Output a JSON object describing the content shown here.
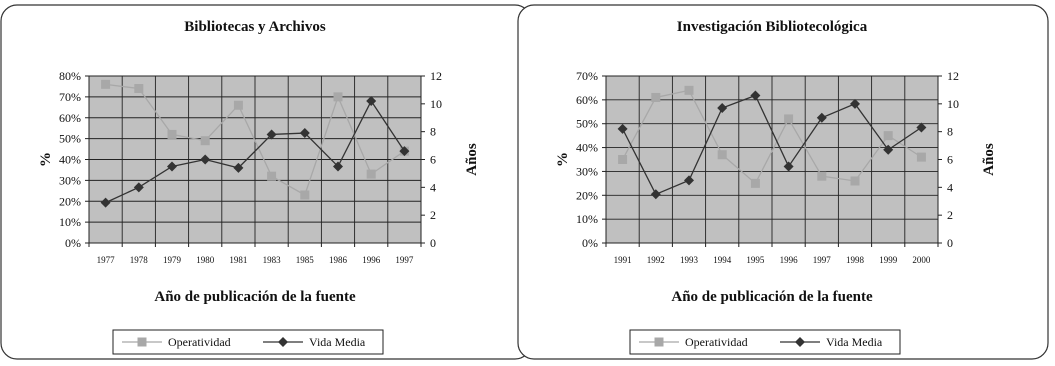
{
  "chart_data": [
    {
      "type": "line",
      "title": "Bibliotecas y Archivos",
      "xlabel": "Año de publicación de la fuente",
      "ylabel": "%",
      "y2label": "Años",
      "categories": [
        "1977",
        "1978",
        "1979",
        "1980",
        "1981",
        "1983",
        "1985",
        "1986",
        "1996",
        "1997"
      ],
      "yticks": [
        "0%",
        "10%",
        "20%",
        "30%",
        "40%",
        "50%",
        "60%",
        "70%",
        "80%"
      ],
      "y2ticks": [
        "0",
        "2",
        "4",
        "6",
        "8",
        "10",
        "12"
      ],
      "ylim": [
        0,
        80
      ],
      "y2lim": [
        0,
        12
      ],
      "grid": true,
      "legend_position": "bottom",
      "series": [
        {
          "name": "Operatividad",
          "axis": "left",
          "marker": "square",
          "color": "#a8a8a8",
          "values": [
            76,
            74,
            52,
            49,
            66,
            32,
            23,
            70,
            33,
            44
          ]
        },
        {
          "name": "Vida Media",
          "axis": "right",
          "marker": "diamond",
          "color": "#333333",
          "values": [
            2.9,
            4.0,
            5.5,
            6.0,
            5.4,
            7.8,
            7.9,
            5.5,
            10.2,
            6.6
          ]
        }
      ]
    },
    {
      "type": "line",
      "title": "Investigación Bibliotecológica",
      "xlabel": "Año de publicación de la fuente",
      "ylabel": "%",
      "y2label": "Años",
      "categories": [
        "1991",
        "1992",
        "1993",
        "1994",
        "1995",
        "1996",
        "1997",
        "1998",
        "1999",
        "2000"
      ],
      "yticks": [
        "0%",
        "10%",
        "20%",
        "30%",
        "40%",
        "50%",
        "60%",
        "70%"
      ],
      "y2ticks": [
        "0",
        "2",
        "4",
        "6",
        "8",
        "10",
        "12"
      ],
      "ylim": [
        0,
        70
      ],
      "y2lim": [
        0,
        12
      ],
      "grid": true,
      "legend_position": "bottom",
      "series": [
        {
          "name": "Operatividad",
          "axis": "left",
          "marker": "square",
          "color": "#a8a8a8",
          "values": [
            35,
            61,
            64,
            37,
            25,
            52,
            28,
            26,
            45,
            36
          ]
        },
        {
          "name": "Vida Media",
          "axis": "right",
          "marker": "diamond",
          "color": "#333333",
          "values": [
            8.2,
            3.5,
            4.5,
            9.7,
            10.6,
            5.5,
            9.0,
            10.0,
            6.7,
            8.3
          ]
        }
      ]
    }
  ]
}
